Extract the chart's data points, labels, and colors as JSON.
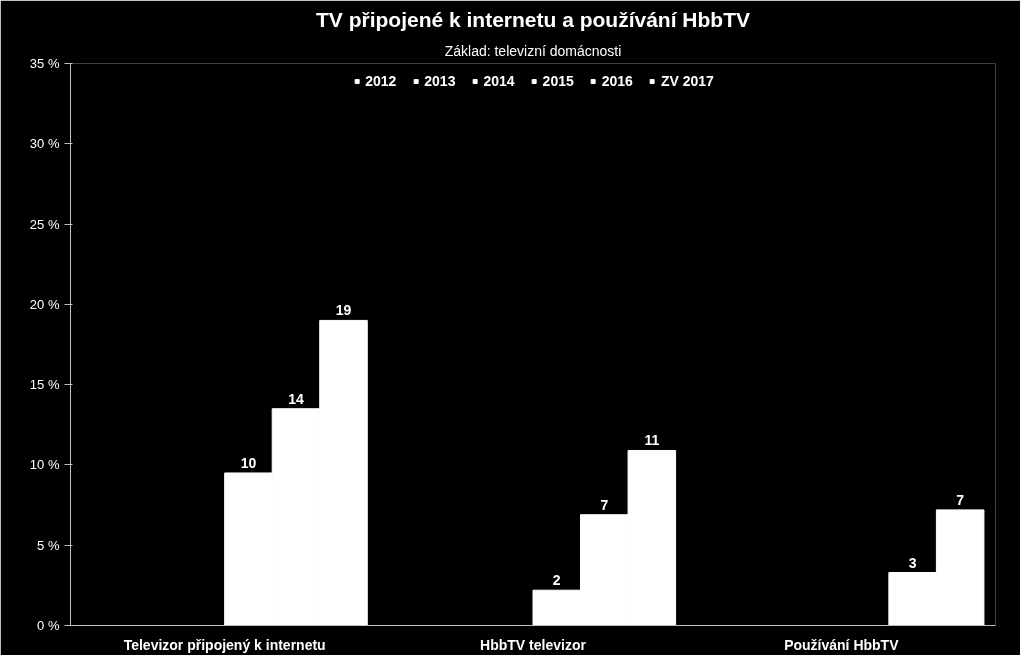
{
  "chart_data": {
    "type": "bar",
    "title": "TV připojené k internetu a používání HbbTV",
    "subtitle": "Základ: televizní domácnosti",
    "categories": [
      "Televizor připojený k internetu",
      "HbbTV televizor",
      "Používání HbbTV"
    ],
    "series": [
      {
        "name": "2012",
        "color": "#ffffff",
        "values": [
          null,
          null,
          null
        ]
      },
      {
        "name": "2013",
        "color": "#ffffff",
        "values": [
          null,
          null,
          null
        ]
      },
      {
        "name": "2014",
        "color": "#ffffff",
        "values": [
          null,
          null,
          null
        ]
      },
      {
        "name": "2015",
        "color": "#ffffff",
        "values": [
          9.5,
          2.2,
          null
        ],
        "value_labels": [
          "10",
          "2",
          null
        ]
      },
      {
        "name": "2016",
        "color": "#ffffff",
        "values": [
          13.5,
          6.9,
          3.3
        ],
        "value_labels": [
          "14",
          "7",
          "3"
        ]
      },
      {
        "name": "ZV 2017",
        "color": "#ffffff",
        "values": [
          19,
          10.9,
          7.2
        ],
        "value_labels": [
          "19",
          "11",
          "7"
        ]
      }
    ],
    "ylim": [
      0,
      35
    ],
    "yticks": [
      {
        "value": 0,
        "label": "0 %"
      },
      {
        "value": 5,
        "label": "5 %"
      },
      {
        "value": 10,
        "label": "10 %"
      },
      {
        "value": 15,
        "label": "15 %"
      },
      {
        "value": 20,
        "label": "20 %"
      },
      {
        "value": 25,
        "label": "25 %"
      },
      {
        "value": 30,
        "label": "30 %"
      },
      {
        "value": 35,
        "label": "35 %"
      }
    ],
    "grid": false,
    "legend": "top"
  }
}
